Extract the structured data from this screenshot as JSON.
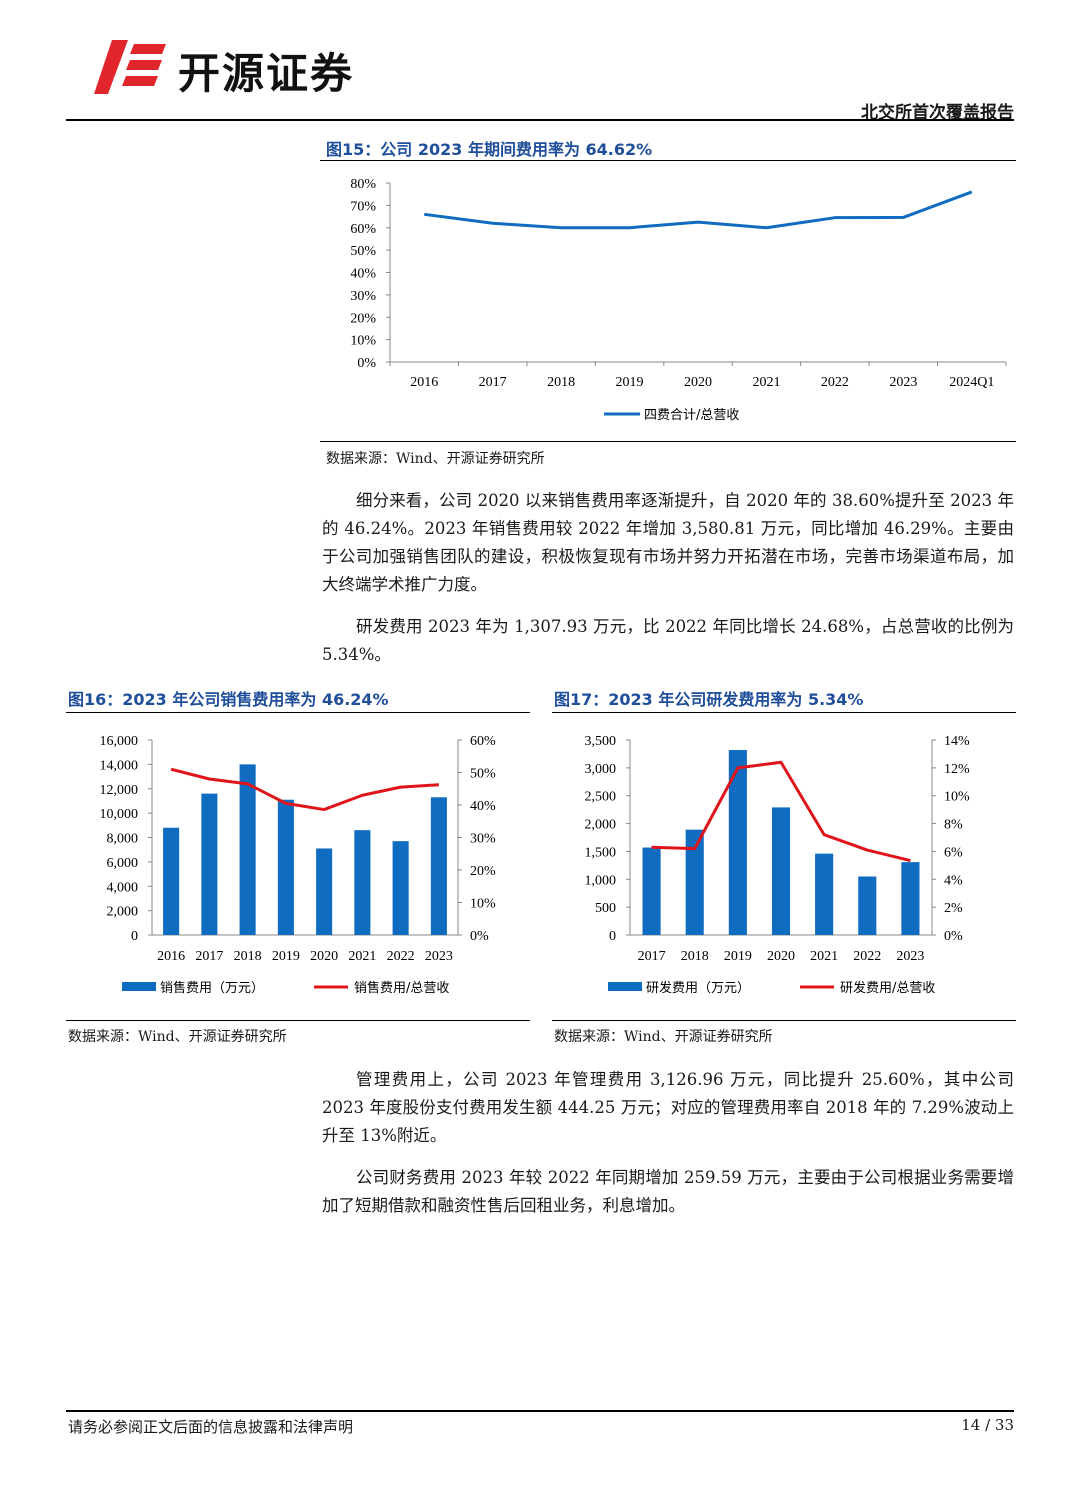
{
  "header": {
    "brand": "开源证券",
    "report_type": "北交所首次覆盖报告"
  },
  "figures": {
    "fig15": {
      "title": "图15：公司 2023 年期间费用率为 64.62%",
      "source": "数据来源：Wind、开源证券研究所"
    },
    "fig16": {
      "title": "图16：2023 年公司销售费用率为 46.24%",
      "source": "数据来源：Wind、开源证券研究所"
    },
    "fig17": {
      "title": "图17：2023 年公司研发费用率为 5.34%",
      "source": "数据来源：Wind、开源证券研究所"
    }
  },
  "paragraphs": {
    "p1": "细分来看，公司 2020 以来销售费用率逐渐提升，自 2020 年的 38.60%提升至 2023 年的 46.24%。2023 年销售费用较 2022 年增加 3,580.81 万元，同比增加 46.29%。主要由于公司加强销售团队的建设，积极恢复现有市场并努力开拓潜在市场，完善市场渠道布局，加大终端学术推广力度。",
    "p2": "研发费用 2023 年为 1,307.93 万元，比 2022 年同比增长 24.68%，占总营收的比例为 5.34%。",
    "p3": "管理费用上，公司 2023 年管理费用 3,126.96 万元，同比提升 25.60%，其中公司 2023 年度股份支付费用发生额 444.25 万元；对应的管理费用率自 2018 年的 7.29%波动上升至 13%附近。",
    "p4": "公司财务费用 2023 年较 2022 年同期增加 259.59 万元，主要由于公司根据业务需要增加了短期借款和融资性售后回租业务，利息增加。"
  },
  "footer": {
    "disclaimer": "请务必参阅正文后面的信息披露和法律声明",
    "page": "14 / 33"
  },
  "colors": {
    "blue": "#0f6cc0",
    "red": "#e0141b",
    "title_blue": "#1f4e9a"
  },
  "chart_data": [
    {
      "id": "fig15",
      "type": "line",
      "categories": [
        "2016",
        "2017",
        "2018",
        "2019",
        "2020",
        "2021",
        "2022",
        "2023",
        "2024Q1"
      ],
      "series": [
        {
          "name": "四费合计/总营收",
          "values": [
            66,
            62,
            60,
            60,
            62.5,
            60,
            64.5,
            64.62,
            76
          ]
        }
      ],
      "ylim": [
        0,
        80
      ],
      "yticks": [
        "0%",
        "10%",
        "20%",
        "30%",
        "40%",
        "50%",
        "60%",
        "70%",
        "80%"
      ],
      "legend": "bottom"
    },
    {
      "id": "fig16",
      "type": "bar",
      "categories": [
        "2016",
        "2017",
        "2018",
        "2019",
        "2020",
        "2021",
        "2022",
        "2023"
      ],
      "series": [
        {
          "name": "销售费用（万元）",
          "type": "bar",
          "axis": "left",
          "values": [
            8800,
            11600,
            14000,
            11100,
            7100,
            8600,
            7700,
            11300
          ]
        },
        {
          "name": "销售费用/总营收",
          "type": "line",
          "axis": "right",
          "values": [
            51,
            48,
            46.5,
            40.5,
            38.6,
            43,
            45.5,
            46.24
          ]
        }
      ],
      "ylim_left": [
        0,
        16000
      ],
      "yticks_left": [
        "0",
        "2,000",
        "4,000",
        "6,000",
        "8,000",
        "10,000",
        "12,000",
        "14,000",
        "16,000"
      ],
      "ylim_right": [
        0,
        60
      ],
      "yticks_right": [
        "0%",
        "10%",
        "20%",
        "30%",
        "40%",
        "50%",
        "60%"
      ],
      "legend": "bottom"
    },
    {
      "id": "fig17",
      "type": "bar",
      "categories": [
        "2017",
        "2018",
        "2019",
        "2020",
        "2021",
        "2022",
        "2023"
      ],
      "series": [
        {
          "name": "研发费用（万元）",
          "type": "bar",
          "axis": "left",
          "values": [
            1570,
            1890,
            3320,
            2290,
            1460,
            1050,
            1307.93
          ]
        },
        {
          "name": "研发费用/总营收",
          "type": "line",
          "axis": "right",
          "values": [
            6.3,
            6.2,
            12.0,
            12.4,
            7.2,
            6.1,
            5.34
          ]
        }
      ],
      "ylim_left": [
        0,
        3500
      ],
      "yticks_left": [
        "0",
        "500",
        "1,000",
        "1,500",
        "2,000",
        "2,500",
        "3,000",
        "3,500"
      ],
      "ylim_right": [
        0,
        14
      ],
      "yticks_right": [
        "0%",
        "2%",
        "4%",
        "6%",
        "8%",
        "10%",
        "12%",
        "14%"
      ],
      "legend": "bottom"
    }
  ]
}
